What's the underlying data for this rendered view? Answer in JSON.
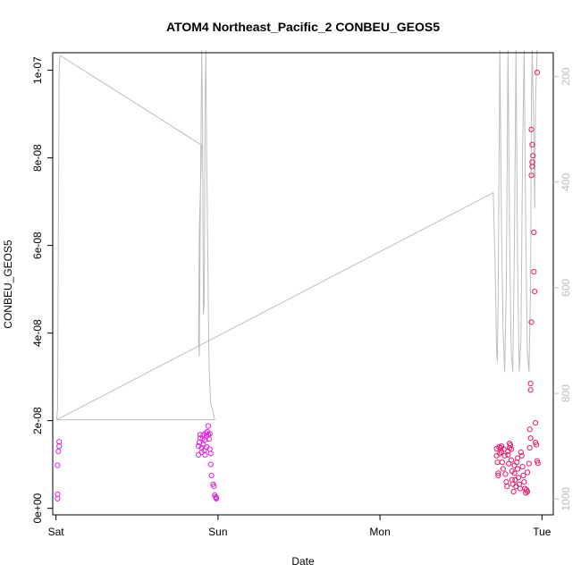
{
  "chart_data": {
    "type": "scatter",
    "title": "ATOM4 Northeast_Pacific_2 CONBEU_GEOS5",
    "xlabel": "Date",
    "ylabel": "CONBEU_GEOS5",
    "x_ticks": [
      "Sat",
      "Sun",
      "Mon",
      "Tue"
    ],
    "xlim": [
      -0.02,
      3.07
    ],
    "y_ticks": [
      "0e+00",
      "2e-08",
      "4e-08",
      "6e-08",
      "8e-08",
      "1e-07"
    ],
    "ylim": [
      -1.5e-09,
      1.04e-07
    ],
    "y2_ticks": [
      "200",
      "400",
      "600",
      "800",
      "1000"
    ],
    "y2lim": [
      1030,
      155
    ],
    "colors": {
      "axis": "#000000",
      "altitude_line": "#bdbdbd",
      "points_early": "#dd22dd",
      "points_late": "#e8186a"
    },
    "series": [
      {
        "values": [
          [
            0.01,
            2.2e-09
          ],
          [
            0.01,
            3.2e-09
          ],
          [
            0.01,
            9.8e-09
          ],
          [
            0.015,
            1.3e-08
          ],
          [
            0.02,
            1.42e-08
          ],
          [
            0.02,
            1.52e-08
          ],
          [
            0.88,
            1.22e-08
          ],
          [
            0.88,
            1.42e-08
          ],
          [
            0.885,
            1.5e-08
          ],
          [
            0.89,
            1.6e-08
          ],
          [
            0.89,
            1.68e-08
          ],
          [
            0.9,
            1.28e-08
          ],
          [
            0.9,
            1.38e-08
          ],
          [
            0.905,
            1.58e-08
          ],
          [
            0.91,
            1.68e-08
          ],
          [
            0.91,
            1.45e-08
          ],
          [
            0.915,
            1.32e-08
          ],
          [
            0.92,
            1.22e-08
          ],
          [
            0.92,
            1.56e-08
          ],
          [
            0.925,
            1.72e-08
          ],
          [
            0.93,
            1.65e-08
          ],
          [
            0.93,
            1.4e-08
          ],
          [
            0.935,
            1.75e-08
          ],
          [
            0.94,
            1.88e-08
          ],
          [
            0.94,
            1.68e-08
          ],
          [
            0.945,
            1.58e-08
          ],
          [
            0.95,
            1.7e-08
          ],
          [
            0.95,
            1.35e-08
          ],
          [
            0.955,
            1.25e-08
          ],
          [
            0.955,
            1e-08
          ],
          [
            0.96,
            7.5e-09
          ],
          [
            0.97,
            5.5e-09
          ],
          [
            0.975,
            5e-09
          ],
          [
            0.98,
            3e-09
          ],
          [
            0.985,
            2.6e-09
          ],
          [
            0.99,
            2.4e-09
          ],
          [
            0.99,
            2.2e-09
          ]
        ]
      },
      {
        "values": [
          [
            2.72,
            1.36e-08
          ],
          [
            2.72,
            1.2e-08
          ],
          [
            2.725,
            1.05e-08
          ],
          [
            2.73,
            8e-09
          ],
          [
            2.73,
            7.5e-09
          ],
          [
            2.735,
            1.4e-08
          ],
          [
            2.74,
            1.25e-08
          ],
          [
            2.745,
            1.38e-08
          ],
          [
            2.75,
            1.42e-08
          ],
          [
            2.75,
            1.28e-08
          ],
          [
            2.755,
            1.05e-08
          ],
          [
            2.76,
            9e-09
          ],
          [
            2.765,
            1.35e-08
          ],
          [
            2.77,
            1.2e-08
          ],
          [
            2.775,
            7.8e-09
          ],
          [
            2.78,
            6e-09
          ],
          [
            2.785,
            5e-09
          ],
          [
            2.79,
            1.22e-08
          ],
          [
            2.79,
            1.3e-08
          ],
          [
            2.795,
            1.02e-08
          ],
          [
            2.8,
            1.38e-08
          ],
          [
            2.8,
            1.48e-08
          ],
          [
            2.805,
            1.44e-08
          ],
          [
            2.81,
            1.35e-08
          ],
          [
            2.81,
            1.1e-08
          ],
          [
            2.815,
            8.5e-09
          ],
          [
            2.815,
            6.5e-09
          ],
          [
            2.82,
            5.5e-09
          ],
          [
            2.825,
            3.8e-09
          ],
          [
            2.83,
            9.8e-09
          ],
          [
            2.83,
            8e-09
          ],
          [
            2.835,
            6.5e-09
          ],
          [
            2.84,
            5e-09
          ],
          [
            2.845,
            1.05e-08
          ],
          [
            2.85,
            1.15e-08
          ],
          [
            2.85,
            9e-09
          ],
          [
            2.855,
            7e-09
          ],
          [
            2.86,
            5.5e-09
          ],
          [
            2.865,
            4.5e-09
          ],
          [
            2.87,
            1.28e-08
          ],
          [
            2.875,
            1.2e-08
          ],
          [
            2.88,
            9.5e-09
          ],
          [
            2.885,
            7.5e-09
          ],
          [
            2.89,
            6e-09
          ],
          [
            2.895,
            4.5e-09
          ],
          [
            2.9,
            3.5e-09
          ],
          [
            2.905,
            4.2e-09
          ],
          [
            2.91,
            3.8e-09
          ],
          [
            2.91,
            8.2e-09
          ],
          [
            2.92,
            1.02e-08
          ],
          [
            2.925,
            1.38e-08
          ],
          [
            2.93,
            1.6e-08
          ],
          [
            2.925,
            1.8e-08
          ],
          [
            2.93,
            2.7e-08
          ],
          [
            2.93,
            2.85e-08
          ],
          [
            2.935,
            4.25e-08
          ],
          [
            2.935,
            7.6e-08
          ],
          [
            2.94,
            7.8e-08
          ],
          [
            2.94,
            7.9e-08
          ],
          [
            2.945,
            8.05e-08
          ],
          [
            2.94,
            8.3e-08
          ],
          [
            2.935,
            8.65e-08
          ],
          [
            2.95,
            6.3e-08
          ],
          [
            2.95,
            5.4e-08
          ],
          [
            2.955,
            4.95e-08
          ],
          [
            2.96,
            1.95e-08
          ],
          [
            2.96,
            1.5e-08
          ],
          [
            2.965,
            1.45e-08
          ],
          [
            2.97,
            1.08e-08
          ],
          [
            2.975,
            1.03e-08
          ],
          [
            2.97,
            9.95e-08
          ]
        ]
      }
    ],
    "altitude_trace": [
      [
        0.005,
        850
      ],
      [
        0.01,
        830
      ],
      [
        0.02,
        180
      ],
      [
        0.025,
        160
      ],
      [
        0.9,
        330
      ],
      [
        0.885,
        490
      ],
      [
        0.88,
        700
      ],
      [
        0.885,
        730
      ],
      [
        0.89,
        500
      ],
      [
        0.9,
        150
      ],
      [
        0.905,
        300
      ],
      [
        0.91,
        650
      ],
      [
        0.915,
        630
      ],
      [
        0.92,
        250
      ],
      [
        0.925,
        150
      ],
      [
        0.93,
        350
      ],
      [
        0.945,
        750
      ],
      [
        0.955,
        820
      ],
      [
        0.97,
        835
      ],
      [
        0.98,
        850
      ],
      [
        0.005,
        850
      ],
      [
        2.7,
        420
      ],
      [
        2.71,
        550
      ],
      [
        2.72,
        720
      ],
      [
        2.725,
        740
      ],
      [
        2.73,
        600
      ],
      [
        2.74,
        150
      ],
      [
        2.75,
        480
      ],
      [
        2.76,
        680
      ],
      [
        2.77,
        760
      ],
      [
        2.78,
        600
      ],
      [
        2.79,
        150
      ],
      [
        2.8,
        500
      ],
      [
        2.81,
        720
      ],
      [
        2.82,
        760
      ],
      [
        2.83,
        520
      ],
      [
        2.84,
        150
      ],
      [
        2.85,
        560
      ],
      [
        2.86,
        760
      ],
      [
        2.87,
        700
      ],
      [
        2.88,
        350
      ],
      [
        2.89,
        150
      ],
      [
        2.9,
        500
      ],
      [
        2.91,
        720
      ],
      [
        2.92,
        760
      ],
      [
        2.93,
        600
      ],
      [
        2.935,
        250
      ],
      [
        2.94,
        150
      ],
      [
        2.95,
        320
      ],
      [
        2.955,
        450
      ],
      [
        2.96,
        250
      ],
      [
        2.97,
        150
      ]
    ]
  }
}
